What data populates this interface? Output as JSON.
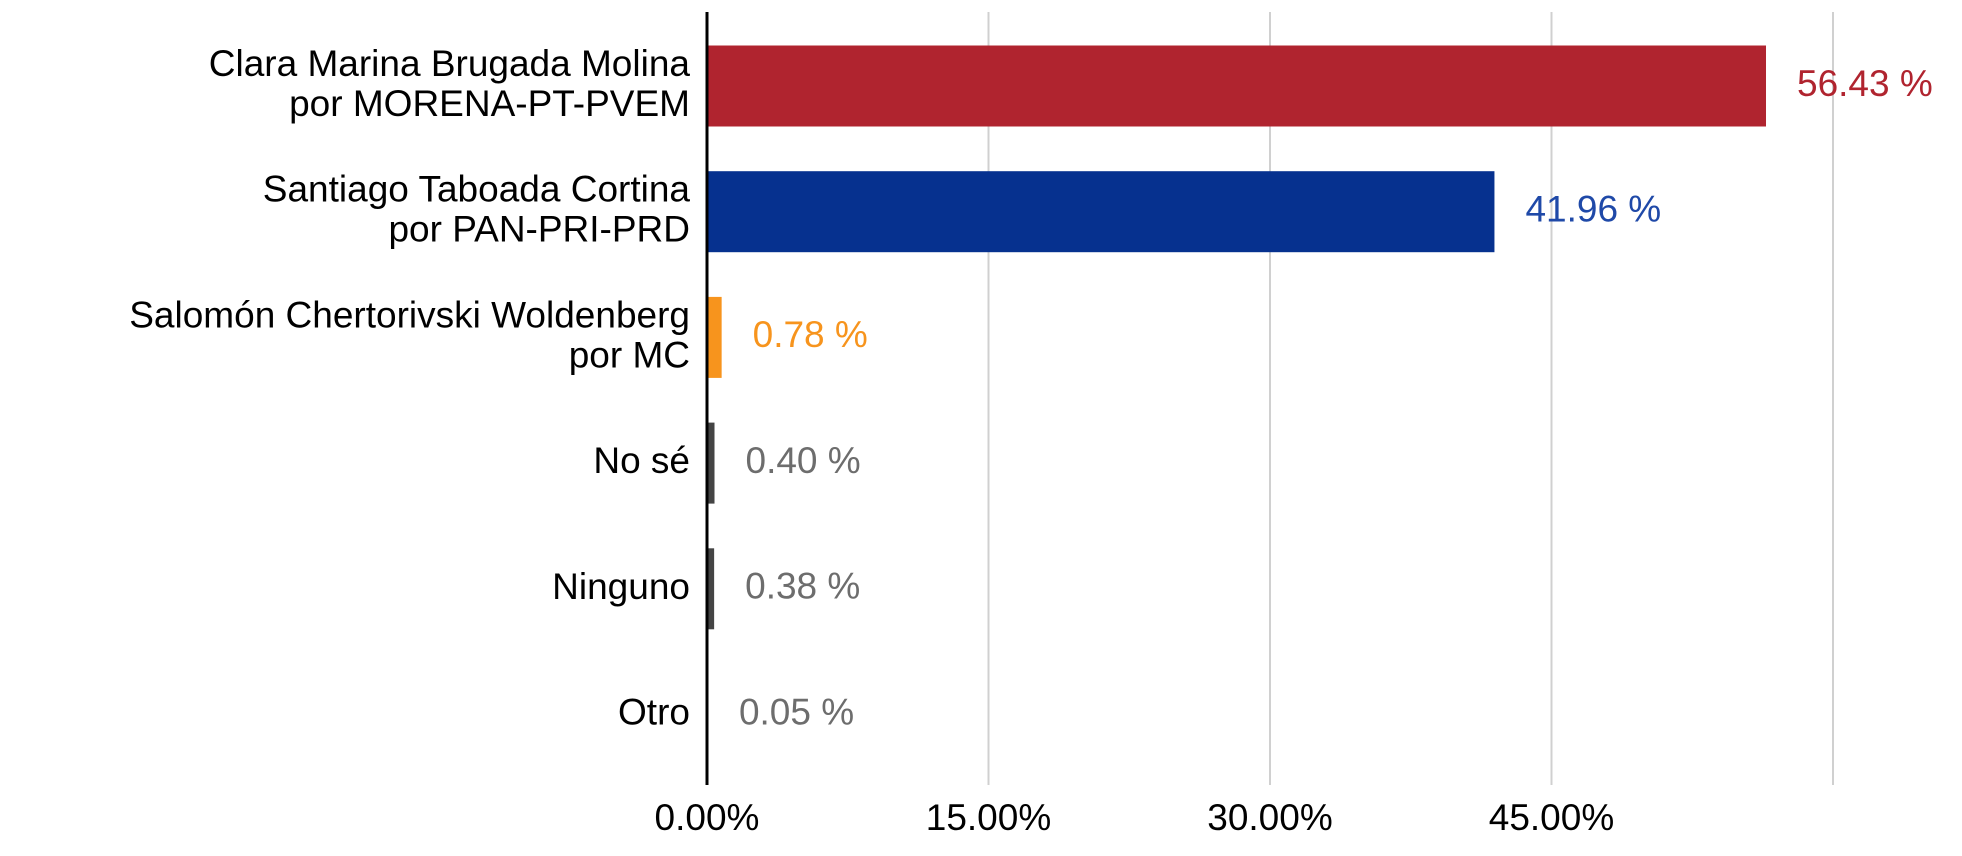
{
  "chart_data": {
    "type": "barh",
    "categories": [
      [
        "Clara Marina Brugada Molina",
        "por MORENA-PT-PVEM"
      ],
      [
        "Santiago Taboada Cortina",
        "por PAN-PRI-PRD"
      ],
      [
        "Salomón Chertorivski Woldenberg",
        "por MC"
      ],
      [
        "No sé"
      ],
      [
        "Ninguno"
      ],
      [
        "Otro"
      ]
    ],
    "values": [
      56.43,
      41.96,
      0.78,
      0.4,
      0.38,
      0.05
    ],
    "value_labels": [
      "56.43 %",
      "41.96 %",
      "0.78 %",
      "0.40 %",
      "0.38 %",
      "0.05 %"
    ],
    "colors": [
      "#b0242f",
      "#06318f",
      "#f7941d",
      "#444444",
      "#444444",
      "#444444"
    ],
    "label_colors": [
      "#b0242f",
      "#1f49a8",
      "#f7941d",
      "#6d6d6d",
      "#6d6d6d",
      "#6d6d6d"
    ],
    "xlim": [
      0,
      60
    ],
    "xticks": [
      {
        "value": 0,
        "label": "0.00%"
      },
      {
        "value": 15,
        "label": "15.00%"
      },
      {
        "value": 30,
        "label": "30.00%"
      },
      {
        "value": 45,
        "label": "45.00%"
      }
    ],
    "grid_lines": [
      15,
      30,
      45,
      60
    ],
    "grid": true
  }
}
